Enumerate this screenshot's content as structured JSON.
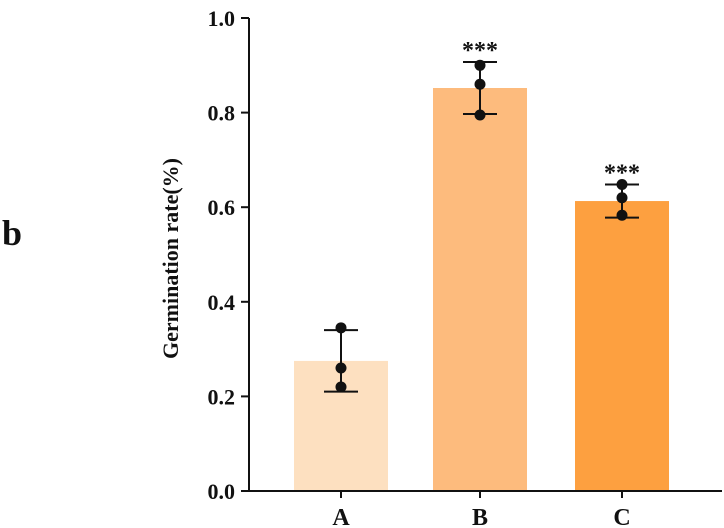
{
  "panel_label": "b",
  "chart_data": {
    "type": "bar",
    "categories": [
      "A",
      "B",
      "C"
    ],
    "values": [
      0.275,
      0.852,
      0.613
    ],
    "error": [
      0.065,
      0.055,
      0.035
    ],
    "points": [
      [
        0.345,
        0.26,
        0.22
      ],
      [
        0.9,
        0.86,
        0.795
      ],
      [
        0.648,
        0.62,
        0.583
      ]
    ],
    "significance": [
      "",
      "***",
      "***"
    ],
    "colors": [
      "#fde0c0",
      "#fdbb7d",
      "#fda040"
    ],
    "xlabel": "",
    "ylabel": "Germination rate(%)",
    "ylim": [
      0,
      1.0
    ],
    "yticks": [
      "0.0",
      "0.2",
      "0.4",
      "0.6",
      "0.8",
      "1.0"
    ],
    "grid": false,
    "legend": "none"
  }
}
